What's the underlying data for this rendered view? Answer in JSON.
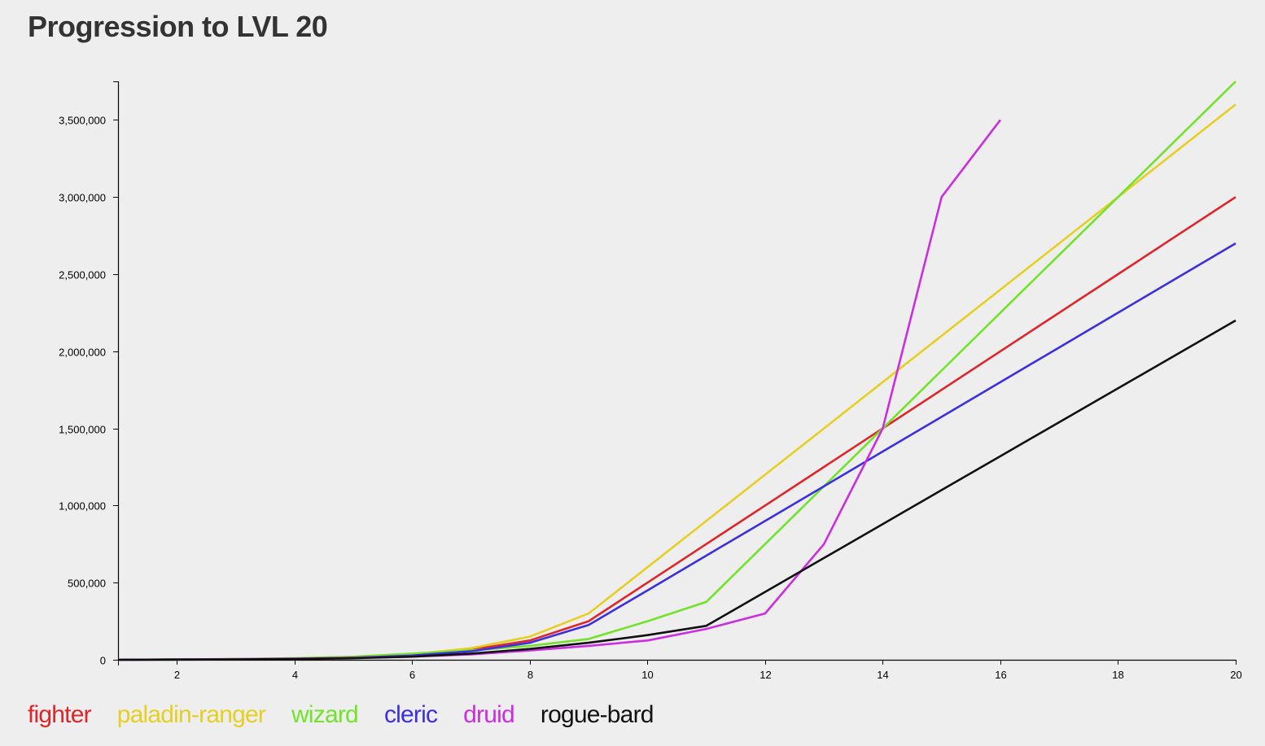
{
  "title": "Progression to LVL 20",
  "chart_data": {
    "type": "line",
    "title": "Progression to LVL 20",
    "xlabel": "",
    "ylabel": "",
    "xlim": [
      1,
      20
    ],
    "ylim": [
      0,
      3750000
    ],
    "x_ticks": [
      2,
      4,
      6,
      8,
      10,
      12,
      14,
      16,
      18,
      20
    ],
    "y_ticks": [
      0,
      500000,
      1000000,
      1500000,
      2000000,
      2500000,
      3000000,
      3500000
    ],
    "grid": false,
    "legend_position": "bottom-left",
    "series": [
      {
        "name": "fighter",
        "color": "#e0252a",
        "x": [
          1,
          2,
          3,
          4,
          5,
          6,
          7,
          8,
          9,
          10,
          11,
          12,
          13,
          14,
          15,
          16,
          17,
          18,
          19,
          20
        ],
        "values": [
          0,
          2000,
          4000,
          8000,
          16000,
          35000,
          65000,
          125000,
          250000,
          500000,
          750000,
          1000000,
          1250000,
          1500000,
          1750000,
          2000000,
          2250000,
          2500000,
          2750000,
          3000000
        ]
      },
      {
        "name": "paladin-ranger",
        "color": "#e6cf24",
        "x": [
          1,
          2,
          3,
          4,
          5,
          6,
          7,
          8,
          9,
          10,
          11,
          12,
          13,
          14,
          15,
          16,
          17,
          18,
          19,
          20
        ],
        "values": [
          0,
          2250,
          4500,
          9000,
          18000,
          36000,
          75000,
          150000,
          300000,
          600000,
          900000,
          1200000,
          1500000,
          1800000,
          2100000,
          2400000,
          2700000,
          3000000,
          3300000,
          3600000
        ]
      },
      {
        "name": "wizard",
        "color": "#72e32a",
        "x": [
          1,
          2,
          3,
          4,
          5,
          6,
          7,
          8,
          9,
          10,
          11,
          12,
          13,
          14,
          15,
          16,
          17,
          18,
          19,
          20
        ],
        "values": [
          0,
          2500,
          5000,
          10000,
          20000,
          40000,
          60000,
          90000,
          135000,
          250000,
          375000,
          750000,
          1125000,
          1500000,
          1875000,
          2250000,
          2625000,
          3000000,
          3375000,
          3750000
        ]
      },
      {
        "name": "cleric",
        "color": "#3b2fe0",
        "x": [
          1,
          2,
          3,
          4,
          5,
          6,
          7,
          8,
          9,
          10,
          11,
          12,
          13,
          14,
          15,
          16,
          17,
          18,
          19,
          20
        ],
        "values": [
          0,
          1500,
          3000,
          6000,
          13000,
          27500,
          55000,
          110000,
          225000,
          450000,
          675000,
          900000,
          1125000,
          1350000,
          1575000,
          1800000,
          2025000,
          2250000,
          2475000,
          2700000
        ]
      },
      {
        "name": "druid",
        "color": "#cb2ee0",
        "x": [
          1,
          2,
          3,
          4,
          5,
          6,
          7,
          8,
          9,
          10,
          11,
          12,
          13,
          14,
          15,
          16
        ],
        "values": [
          0,
          2000,
          4000,
          7500,
          12500,
          20000,
          35000,
          60000,
          90000,
          125000,
          200000,
          300000,
          750000,
          1500000,
          3000000,
          3500000
        ]
      },
      {
        "name": "rogue-bard",
        "color": "#111111",
        "x": [
          1,
          2,
          3,
          4,
          5,
          6,
          7,
          8,
          9,
          10,
          11,
          12,
          13,
          14,
          15,
          16,
          17,
          18,
          19,
          20
        ],
        "values": [
          0,
          1250,
          2500,
          5000,
          10000,
          20000,
          40000,
          70000,
          110000,
          160000,
          220000,
          440000,
          660000,
          880000,
          1100000,
          1320000,
          1540000,
          1760000,
          1980000,
          2200000
        ]
      }
    ]
  }
}
